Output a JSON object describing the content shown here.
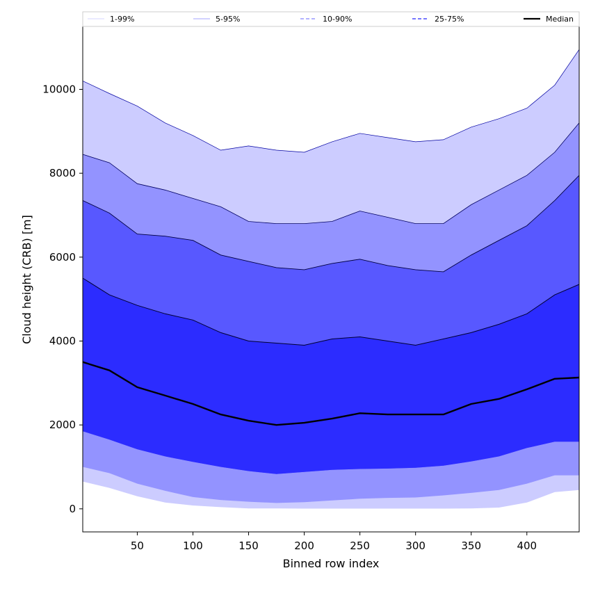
{
  "chart_data": {
    "type": "area",
    "title": "",
    "xlabel": "Binned row index",
    "ylabel": "Cloud height (CRB) [m]",
    "xlim": [
      1,
      447
    ],
    "ylim": [
      -550,
      11500
    ],
    "xticks": [
      50,
      100,
      150,
      200,
      250,
      300,
      350,
      400
    ],
    "yticks": [
      0,
      2000,
      4000,
      6000,
      8000,
      10000
    ],
    "legend_position": "top",
    "x": [
      1,
      25,
      50,
      75,
      100,
      125,
      150,
      175,
      200,
      225,
      250,
      275,
      300,
      325,
      350,
      375,
      400,
      425,
      447
    ],
    "bands": [
      {
        "name": "1-99%",
        "color": "#ccccff",
        "line_style": "solid",
        "lower": [
          650,
          500,
          300,
          150,
          80,
          40,
          10,
          10,
          5,
          5,
          5,
          5,
          5,
          5,
          10,
          30,
          150,
          400,
          450
        ],
        "upper": [
          10200,
          9900,
          9600,
          9200,
          8900,
          8550,
          8650,
          8550,
          8500,
          8750,
          8950,
          8850,
          8750,
          8800,
          9100,
          9300,
          9550,
          10100,
          10950
        ]
      },
      {
        "name": "5-95%",
        "color": "#9393ff",
        "line_style": "solid",
        "lower": [
          1000,
          850,
          600,
          430,
          280,
          210,
          170,
          140,
          160,
          200,
          240,
          260,
          270,
          320,
          380,
          450,
          600,
          800,
          800
        ]
      },
      {
        "name": "10-90%",
        "color": "#5858ff",
        "line_style": "dashed",
        "lower": [
          1850,
          1650,
          1420,
          1250,
          1120,
          1000,
          900,
          830,
          880,
          930,
          950,
          960,
          980,
          1030,
          1130,
          1250,
          1450,
          1600,
          1600
        ],
        "upper": [
          7350,
          7050,
          6550,
          6500,
          6400,
          6050,
          5900,
          5750,
          5700,
          5850,
          5950,
          5800,
          5700,
          5650,
          6050,
          6400,
          6750,
          7350,
          7950
        ]
      },
      {
        "name": "25-75%",
        "color": "#2c2cff",
        "line_style": "dashed"
      }
    ],
    "upper_95": [
      8450,
      8250,
      7750,
      7600,
      7400,
      7200,
      6850,
      6800,
      6800,
      6850,
      7100,
      6950,
      6800,
      6800,
      7250,
      7600,
      7950,
      8500,
      9200
    ],
    "upper_75": [
      5500,
      5100,
      4850,
      4650,
      4500,
      4200,
      4000,
      3950,
      3900,
      4050,
      4100,
      4000,
      3900,
      4050,
      4200,
      4400,
      4650,
      5100,
      5350
    ],
    "series": [
      {
        "name": "Median",
        "color": "#000000",
        "values": [
          3500,
          3300,
          2900,
          2700,
          2500,
          2250,
          2100,
          2000,
          2050,
          2150,
          2280,
          2250,
          2250,
          2250,
          2500,
          2620,
          2850,
          3100,
          3130
        ]
      }
    ]
  }
}
